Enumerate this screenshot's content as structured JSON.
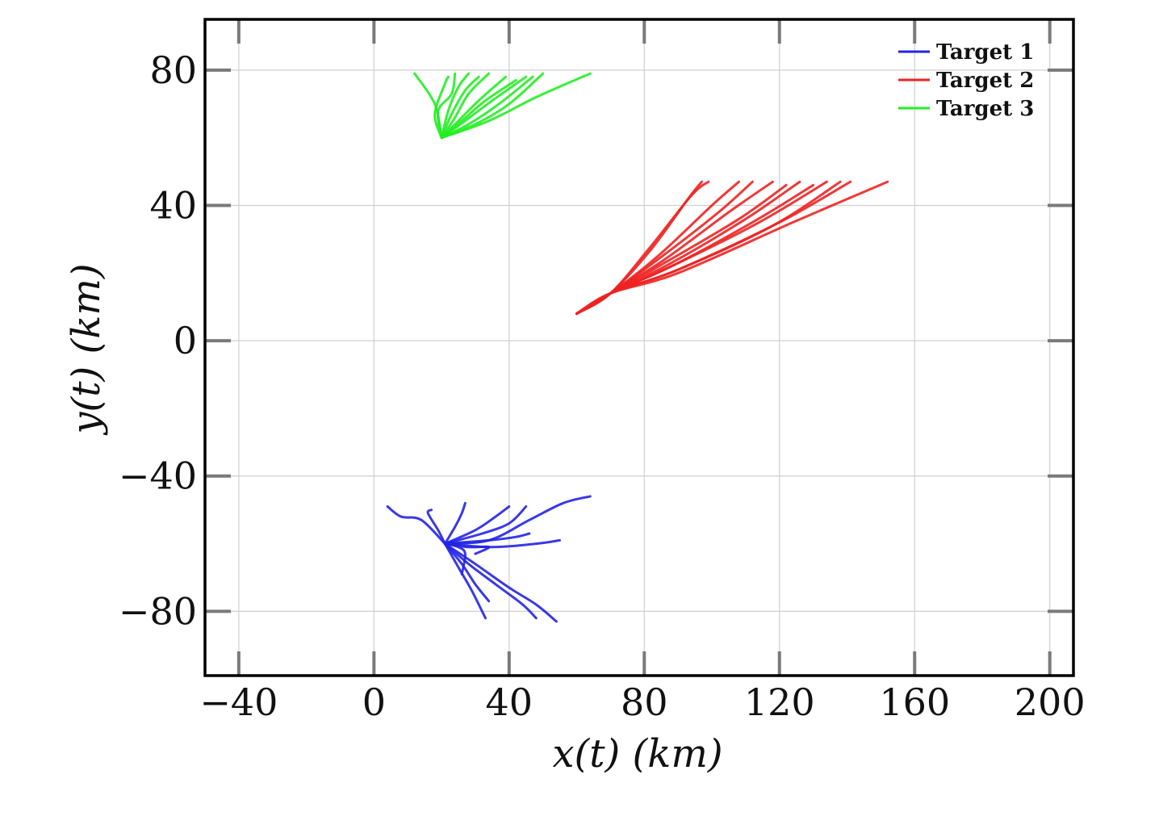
{
  "chart_data": {
    "type": "line",
    "xlabel": "x(t) (km)",
    "ylabel": "y(t) (km)",
    "xlim": [
      -50,
      207
    ],
    "ylim": [
      -99,
      95
    ],
    "xticks": [
      -40,
      0,
      40,
      80,
      120,
      160,
      200
    ],
    "yticks": [
      -80,
      -40,
      0,
      40,
      80
    ],
    "xtick_labels": [
      "−40",
      "0",
      "40",
      "80",
      "120",
      "160",
      "200"
    ],
    "ytick_labels": [
      "−80",
      "−40",
      "0",
      "40",
      "80"
    ],
    "grid": true,
    "legend_position": "top-right",
    "series": [
      {
        "name": "Target 1",
        "color": "#2323e6",
        "tracks": [
          [
            [
              21,
              -60
            ],
            [
              14,
              -53
            ],
            [
              8,
              -52
            ],
            [
              4,
              -49
            ]
          ],
          [
            [
              21,
              -60
            ],
            [
              19,
              -56
            ],
            [
              16,
              -51
            ],
            [
              17,
              -50
            ]
          ],
          [
            [
              21,
              -60
            ],
            [
              24,
              -55
            ],
            [
              26,
              -51
            ],
            [
              27,
              -48
            ]
          ],
          [
            [
              21,
              -60
            ],
            [
              30,
              -56
            ],
            [
              36,
              -52
            ],
            [
              40,
              -49
            ]
          ],
          [
            [
              21,
              -60
            ],
            [
              32,
              -57
            ],
            [
              40,
              -54
            ],
            [
              45,
              -49
            ]
          ],
          [
            [
              21,
              -60
            ],
            [
              34,
              -59
            ],
            [
              42,
              -58
            ],
            [
              46,
              -57
            ]
          ],
          [
            [
              21,
              -60
            ],
            [
              35,
              -61
            ],
            [
              48,
              -60
            ],
            [
              55,
              -59
            ]
          ],
          [
            [
              21,
              -60
            ],
            [
              34,
              -59
            ],
            [
              46,
              -53
            ],
            [
              56,
              -48
            ],
            [
              64,
              -46
            ]
          ],
          [
            [
              21,
              -60
            ],
            [
              25,
              -61
            ],
            [
              27,
              -63
            ],
            [
              26,
              -69
            ]
          ],
          [
            [
              21,
              -60
            ],
            [
              26,
              -66
            ],
            [
              30,
              -72
            ],
            [
              34,
              -77
            ]
          ],
          [
            [
              21,
              -60
            ],
            [
              25,
              -67
            ],
            [
              29,
              -74
            ],
            [
              33,
              -82
            ]
          ],
          [
            [
              21,
              -60
            ],
            [
              28,
              -66
            ],
            [
              36,
              -72
            ],
            [
              44,
              -78
            ],
            [
              48,
              -82
            ]
          ],
          [
            [
              21,
              -60
            ],
            [
              30,
              -66
            ],
            [
              40,
              -73
            ],
            [
              48,
              -78
            ],
            [
              54,
              -83
            ]
          ],
          [
            [
              21,
              -60
            ],
            [
              28,
              -61
            ],
            [
              34,
              -61
            ],
            [
              30,
              -63
            ]
          ]
        ]
      },
      {
        "name": "Target 2",
        "color": "#ee2222",
        "tracks": [
          [
            [
              60,
              8
            ],
            [
              70,
              14
            ],
            [
              82,
              27
            ],
            [
              93,
              42
            ],
            [
              97,
              47
            ]
          ],
          [
            [
              60,
              8
            ],
            [
              70,
              14
            ],
            [
              82,
              28
            ],
            [
              94,
              43
            ],
            [
              99,
              47
            ]
          ],
          [
            [
              60,
              8
            ],
            [
              70,
              14
            ],
            [
              84,
              25
            ],
            [
              100,
              40
            ],
            [
              108,
              47
            ]
          ],
          [
            [
              60,
              8
            ],
            [
              70,
              14
            ],
            [
              84,
              24
            ],
            [
              102,
              38
            ],
            [
              112,
              47
            ]
          ],
          [
            [
              60,
              8
            ],
            [
              70,
              14
            ],
            [
              86,
              24
            ],
            [
              105,
              38
            ],
            [
              118,
              47
            ]
          ],
          [
            [
              60,
              8
            ],
            [
              70,
              14
            ],
            [
              86,
              23
            ],
            [
              108,
              36
            ],
            [
              122,
              46
            ]
          ],
          [
            [
              60,
              8
            ],
            [
              70,
              14
            ],
            [
              88,
              23
            ],
            [
              110,
              36
            ],
            [
              126,
              47
            ]
          ],
          [
            [
              60,
              8
            ],
            [
              70,
              14
            ],
            [
              88,
              22
            ],
            [
              112,
              35
            ],
            [
              130,
              46
            ]
          ],
          [
            [
              60,
              8
            ],
            [
              70,
              14
            ],
            [
              88,
              22
            ],
            [
              114,
              35
            ],
            [
              134,
              47
            ]
          ],
          [
            [
              60,
              8
            ],
            [
              70,
              14
            ],
            [
              90,
              21
            ],
            [
              118,
              34
            ],
            [
              138,
              47
            ]
          ],
          [
            [
              60,
              8
            ],
            [
              70,
              14
            ],
            [
              90,
              21
            ],
            [
              120,
              35
            ],
            [
              141,
              47
            ]
          ],
          [
            [
              60,
              8
            ],
            [
              70,
              14
            ],
            [
              90,
              20
            ],
            [
              124,
              35
            ],
            [
              152,
              47
            ]
          ]
        ]
      },
      {
        "name": "Target 3",
        "color": "#22ee22",
        "tracks": [
          [
            [
              20,
              60
            ],
            [
              18,
              70
            ],
            [
              12,
              79
            ]
          ],
          [
            [
              20,
              60
            ],
            [
              18,
              67
            ],
            [
              21,
              76
            ],
            [
              22,
              78
            ]
          ],
          [
            [
              20,
              60
            ],
            [
              19,
              68
            ],
            [
              23,
              73
            ],
            [
              24,
              79
            ]
          ],
          [
            [
              20,
              60
            ],
            [
              22,
              68
            ],
            [
              25,
              75
            ],
            [
              28,
              79
            ]
          ],
          [
            [
              20,
              60
            ],
            [
              23,
              67
            ],
            [
              27,
              74
            ],
            [
              31,
              78
            ]
          ],
          [
            [
              20,
              60
            ],
            [
              24,
              66
            ],
            [
              28,
              73
            ],
            [
              34,
              79
            ]
          ],
          [
            [
              20,
              60
            ],
            [
              25,
              65
            ],
            [
              31,
              71
            ],
            [
              39,
              78
            ]
          ],
          [
            [
              20,
              60
            ],
            [
              26,
              65
            ],
            [
              33,
              71
            ],
            [
              42,
              77
            ]
          ],
          [
            [
              20,
              60
            ],
            [
              27,
              65
            ],
            [
              35,
              71
            ],
            [
              45,
              78
            ]
          ],
          [
            [
              20,
              60
            ],
            [
              28,
              64
            ],
            [
              37,
              70
            ],
            [
              47,
              78
            ]
          ],
          [
            [
              20,
              60
            ],
            [
              30,
              64
            ],
            [
              40,
              70
            ],
            [
              50,
              79
            ]
          ],
          [
            [
              20,
              60
            ],
            [
              34,
              65
            ],
            [
              48,
              72
            ],
            [
              64,
              79
            ]
          ]
        ]
      }
    ]
  }
}
